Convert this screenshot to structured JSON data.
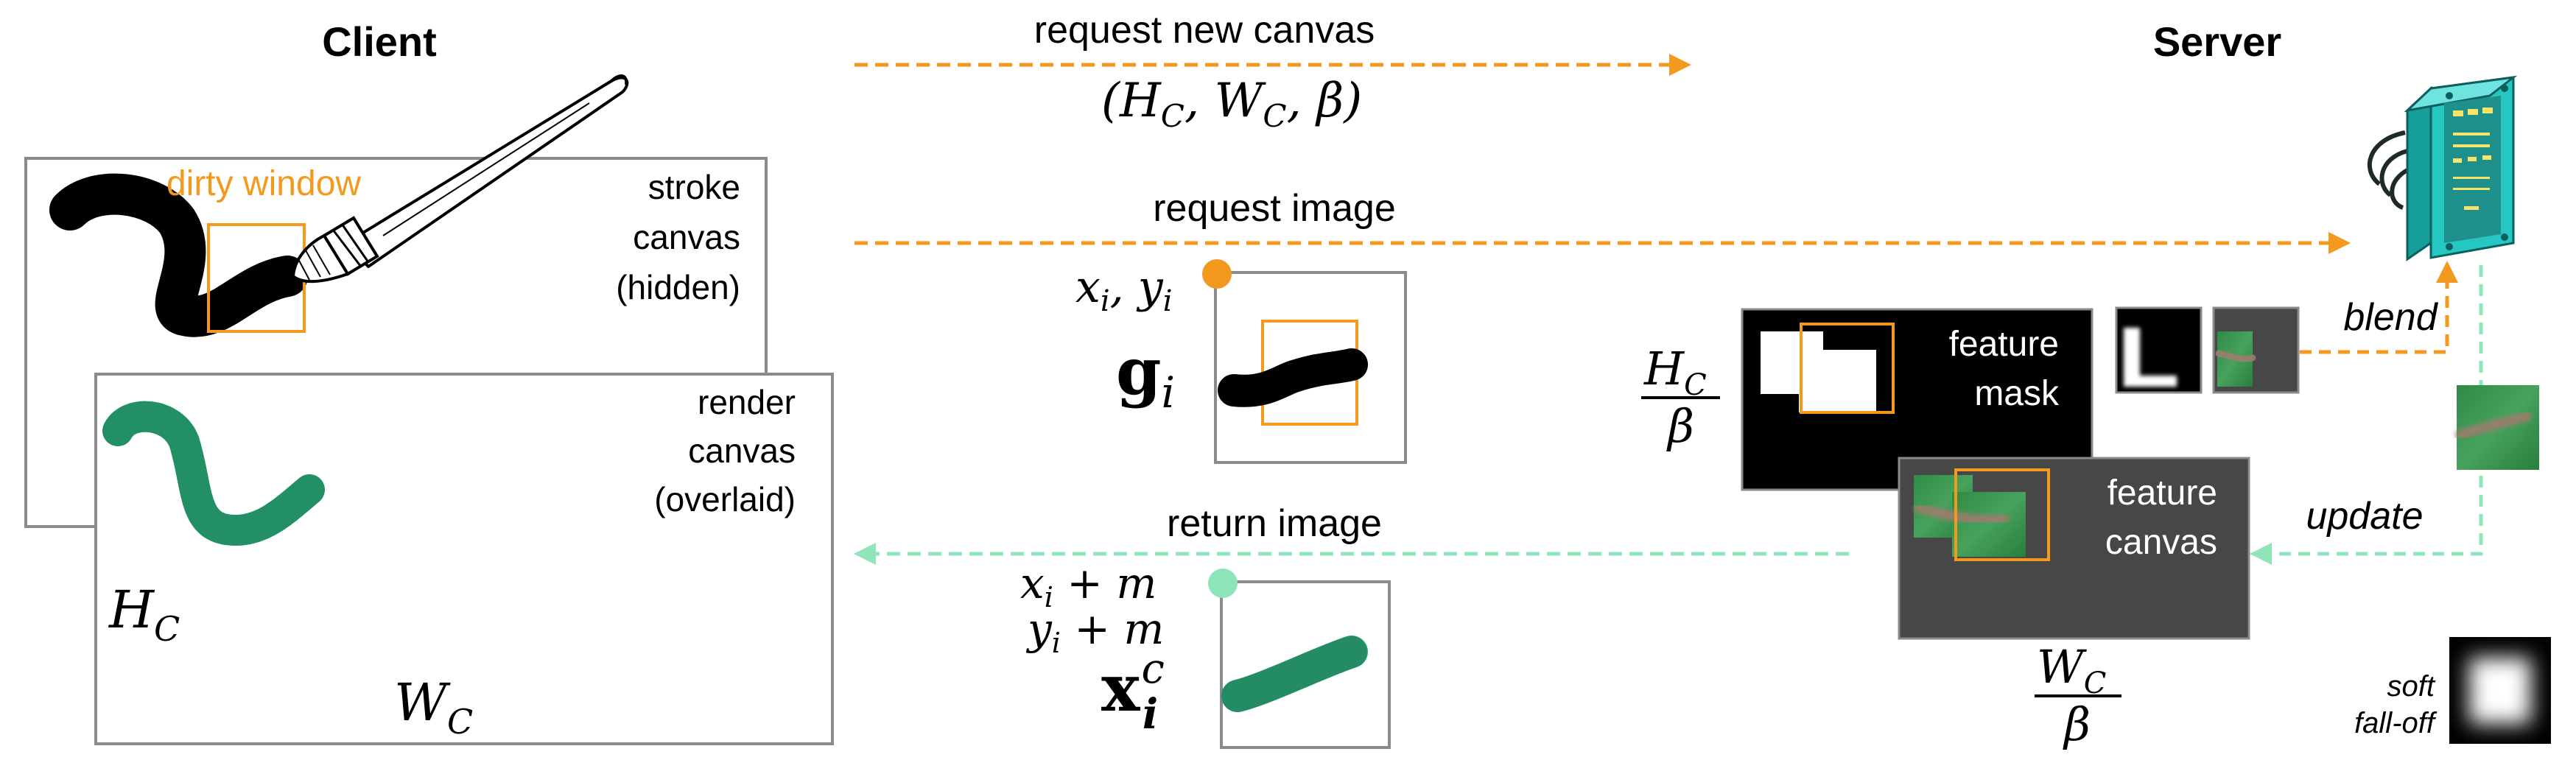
{
  "headings": {
    "client": "Client",
    "server": "Server"
  },
  "client": {
    "stroke_canvas_label": [
      "stroke",
      "canvas",
      "(hidden)"
    ],
    "render_canvas_label": [
      "render",
      "canvas",
      "(overlaid)"
    ],
    "dirty_window_label": "dirty window",
    "height_symbol": {
      "base": "H",
      "sub": "C"
    },
    "width_symbol": {
      "base": "W",
      "sub": "C"
    }
  },
  "messages": {
    "request_new_canvas": "request new canvas",
    "request_new_canvas_params": "(H_C, W_C, β)",
    "request_image": "request image",
    "return_image": "return image"
  },
  "request_patch": {
    "coord_label": "x_i, y_i",
    "symbol_base": "g",
    "symbol_sub": "i"
  },
  "return_patch": {
    "coord_x_label": "x_i + m",
    "coord_y_label": "y_i + m",
    "symbol_base": "x",
    "symbol_sub": "i",
    "symbol_sup": "c"
  },
  "server": {
    "feature_mask_label": [
      "feature",
      "mask"
    ],
    "feature_canvas_label": [
      "feature",
      "canvas"
    ],
    "blend_label": "blend",
    "update_label": "update",
    "soft_falloff_label": [
      "soft",
      "fall-off"
    ],
    "height_fraction": {
      "num_base": "H",
      "num_sub": "C",
      "den": "β"
    },
    "width_fraction": {
      "num_base": "W",
      "num_sub": "C",
      "den": "β"
    }
  },
  "colors": {
    "orange": "#F39A1E",
    "green_dashed": "#8EE6B8",
    "green_dot": "#8EE6B8",
    "frame_gray": "#8A8A8A",
    "dark_gray": "#474747",
    "green_stroke": "#2EA878",
    "server_teal": "#25C7C2"
  },
  "icons": {
    "brush": "paintbrush-icon",
    "server": "server-rack-icon"
  }
}
